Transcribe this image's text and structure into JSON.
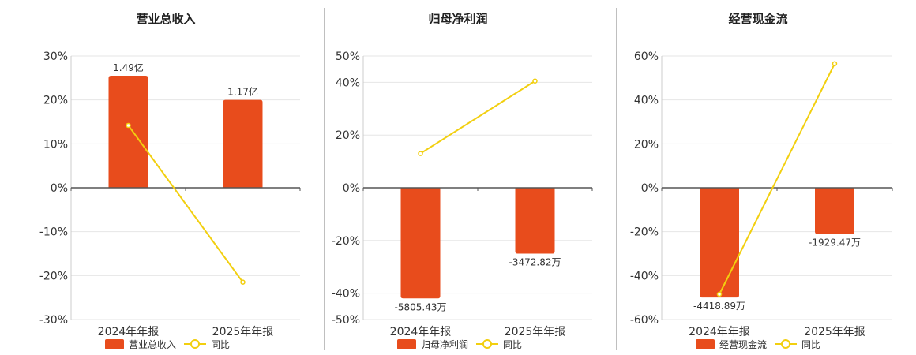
{
  "colors": {
    "bar": "#e84c1c",
    "line": "#f2cf0f",
    "grid": "#e6e6e6",
    "axis": "#555555"
  },
  "chart_data": [
    {
      "type": "bar",
      "title": "营业总收入",
      "categories": [
        "2024年年报",
        "2025年年报"
      ],
      "ylim": [
        -30,
        30
      ],
      "yticks": [
        30,
        20,
        10,
        0,
        -10,
        -20,
        -30
      ],
      "ytick_labels": [
        "30%",
        "20%",
        "10%",
        "0%",
        "-10%",
        "-20%",
        "-30%"
      ],
      "series": [
        {
          "name": "营业总收入",
          "kind": "bar",
          "values": [
            25.5,
            20
          ],
          "labels": [
            "1.49亿",
            "1.17亿"
          ]
        },
        {
          "name": "同比",
          "kind": "line",
          "values": [
            14.2,
            -21.5
          ]
        }
      ],
      "legend": "bottom",
      "grid": true
    },
    {
      "type": "bar",
      "title": "归母净利润",
      "categories": [
        "2024年年报",
        "2025年年报"
      ],
      "ylim": [
        -50,
        50
      ],
      "yticks": [
        50,
        40,
        20,
        0,
        -20,
        -40,
        -50
      ],
      "ytick_labels": [
        "50%",
        "40%",
        "20%",
        "0%",
        "-20%",
        "-40%",
        "-50%"
      ],
      "series": [
        {
          "name": "归母净利润",
          "kind": "bar",
          "values": [
            -42,
            -25
          ],
          "labels": [
            "-5805.43万",
            "-3472.82万"
          ]
        },
        {
          "name": "同比",
          "kind": "line",
          "values": [
            13,
            40.5
          ]
        }
      ],
      "legend": "bottom",
      "grid": true
    },
    {
      "type": "bar",
      "title": "经营现金流",
      "categories": [
        "2024年年报",
        "2025年年报"
      ],
      "ylim": [
        -60,
        60
      ],
      "yticks": [
        60,
        40,
        20,
        0,
        -20,
        -40,
        -60
      ],
      "ytick_labels": [
        "60%",
        "40%",
        "20%",
        "0%",
        "-20%",
        "-40%",
        "-60%"
      ],
      "series": [
        {
          "name": "经营现金流",
          "kind": "bar",
          "values": [
            -50,
            -21
          ],
          "labels": [
            "-4418.89万",
            "-1929.47万"
          ]
        },
        {
          "name": "同比",
          "kind": "line",
          "values": [
            -48.5,
            56.5
          ]
        }
      ],
      "legend": "bottom",
      "grid": true
    }
  ]
}
